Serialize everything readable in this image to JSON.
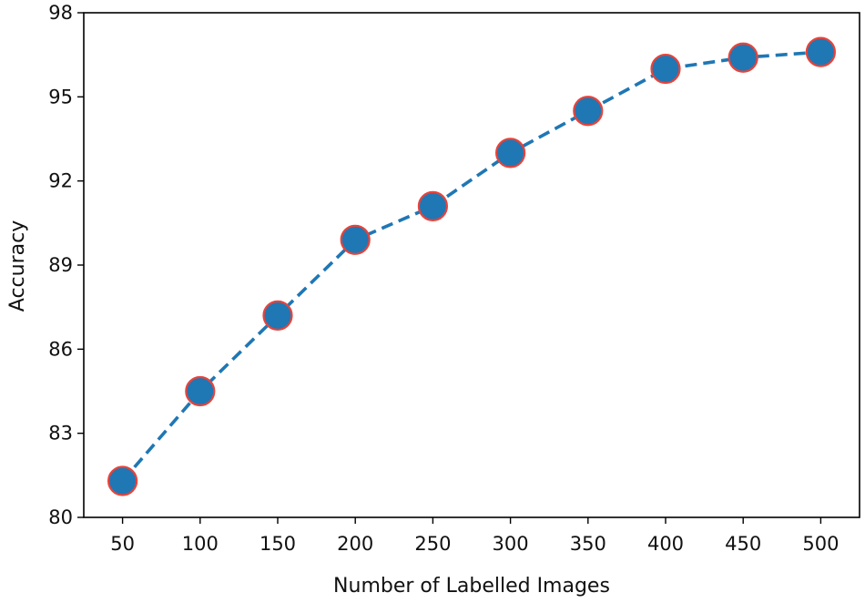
{
  "chart_data": {
    "type": "line",
    "title": "",
    "xlabel": "Number of Labelled Images",
    "ylabel": "Accuracy",
    "x": [
      50,
      100,
      150,
      200,
      250,
      300,
      350,
      400,
      450,
      500
    ],
    "xticks": [
      50,
      100,
      150,
      200,
      250,
      300,
      350,
      400,
      450,
      500
    ],
    "yticks": [
      80,
      83,
      86,
      89,
      92,
      95,
      98
    ],
    "xlim": [
      25,
      525
    ],
    "ylim": [
      80,
      98
    ],
    "grid": false,
    "legend": "none",
    "series": [
      {
        "name": "Accuracy",
        "values": [
          81.3,
          84.5,
          87.2,
          89.9,
          91.1,
          93.0,
          94.5,
          96.0,
          96.4,
          96.6
        ],
        "line_color": "#1f77b4",
        "line_style": "dashed",
        "marker": "circle",
        "marker_face": "#1f77b4",
        "marker_edge": "#e8433a"
      }
    ]
  }
}
